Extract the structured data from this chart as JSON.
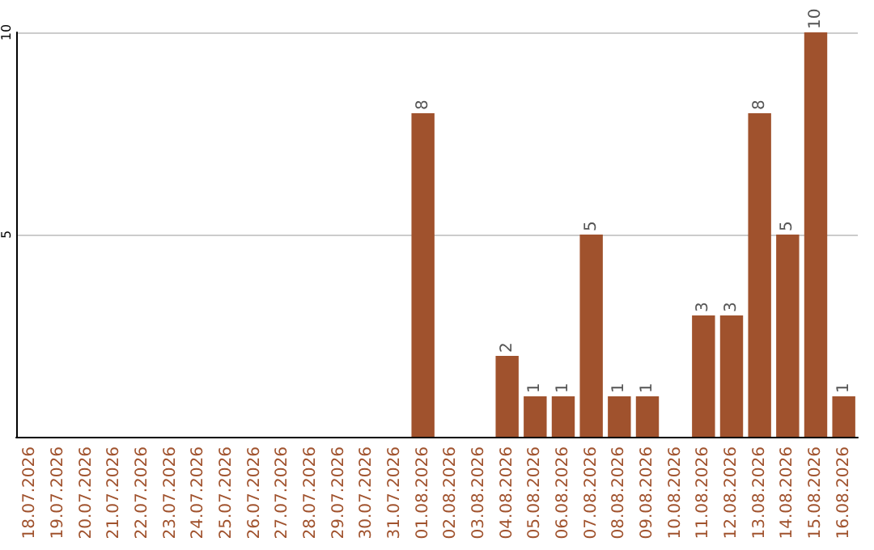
{
  "chart_data": {
    "type": "bar",
    "categories": [
      "18.07.2026",
      "19.07.2026",
      "20.07.2026",
      "21.07.2026",
      "22.07.2026",
      "23.07.2026",
      "24.07.2026",
      "25.07.2026",
      "26.07.2026",
      "27.07.2026",
      "28.07.2026",
      "29.07.2026",
      "30.07.2026",
      "31.07.2026",
      "01.08.2026",
      "02.08.2026",
      "03.08.2026",
      "04.08.2026",
      "05.08.2026",
      "06.08.2026",
      "07.08.2026",
      "08.08.2026",
      "09.08.2026",
      "10.08.2026",
      "11.08.2026",
      "12.08.2026",
      "13.08.2026",
      "14.08.2026",
      "15.08.2026",
      "16.08.2026"
    ],
    "values": [
      0,
      0,
      0,
      0,
      0,
      0,
      0,
      0,
      0,
      0,
      0,
      0,
      0,
      0,
      8,
      0,
      0,
      2,
      1,
      1,
      5,
      1,
      1,
      0,
      3,
      3,
      8,
      5,
      10,
      1
    ],
    "value_labels": [
      null,
      null,
      null,
      null,
      null,
      null,
      null,
      null,
      null,
      null,
      null,
      null,
      null,
      null,
      "8",
      null,
      null,
      "2",
      "1",
      "1",
      "5",
      "1",
      "1",
      null,
      "3",
      "3",
      "8",
      "5",
      "10",
      "1"
    ],
    "color": "#a0522d",
    "ylim": [
      0,
      10
    ],
    "yticks": [
      {
        "value": 0,
        "label": null
      },
      5,
      10
    ],
    "grid": "y"
  }
}
